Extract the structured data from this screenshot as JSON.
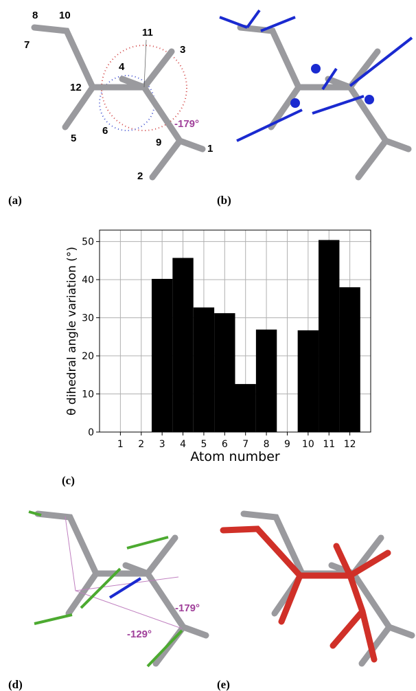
{
  "panel_labels": [
    "(a)",
    "(b)",
    "(c)",
    "(d)",
    "(e)"
  ],
  "atom_labels": [
    "8",
    "10",
    "11",
    "3",
    "7",
    "4",
    "12",
    "6",
    "5",
    "9",
    "1",
    "2"
  ],
  "angle_a": "-179°",
  "angle_d": [
    "-179°",
    "-129°"
  ],
  "chart_data": {
    "type": "bar",
    "categories": [
      "1",
      "2",
      "3",
      "4",
      "5",
      "6",
      "7",
      "8",
      "9",
      "10",
      "11",
      "12"
    ],
    "values": [
      0,
      0,
      40.2,
      45.7,
      32.7,
      31.2,
      12.6,
      26.9,
      0,
      26.7,
      50.4,
      38.0
    ],
    "color": "#000000",
    "xlabel": "Atom number",
    "ylabel": "θ dihedral angle variation (°)",
    "ylim": [
      0,
      53
    ],
    "yticks": [
      0,
      10,
      20,
      30,
      40,
      50
    ],
    "grid": true
  }
}
